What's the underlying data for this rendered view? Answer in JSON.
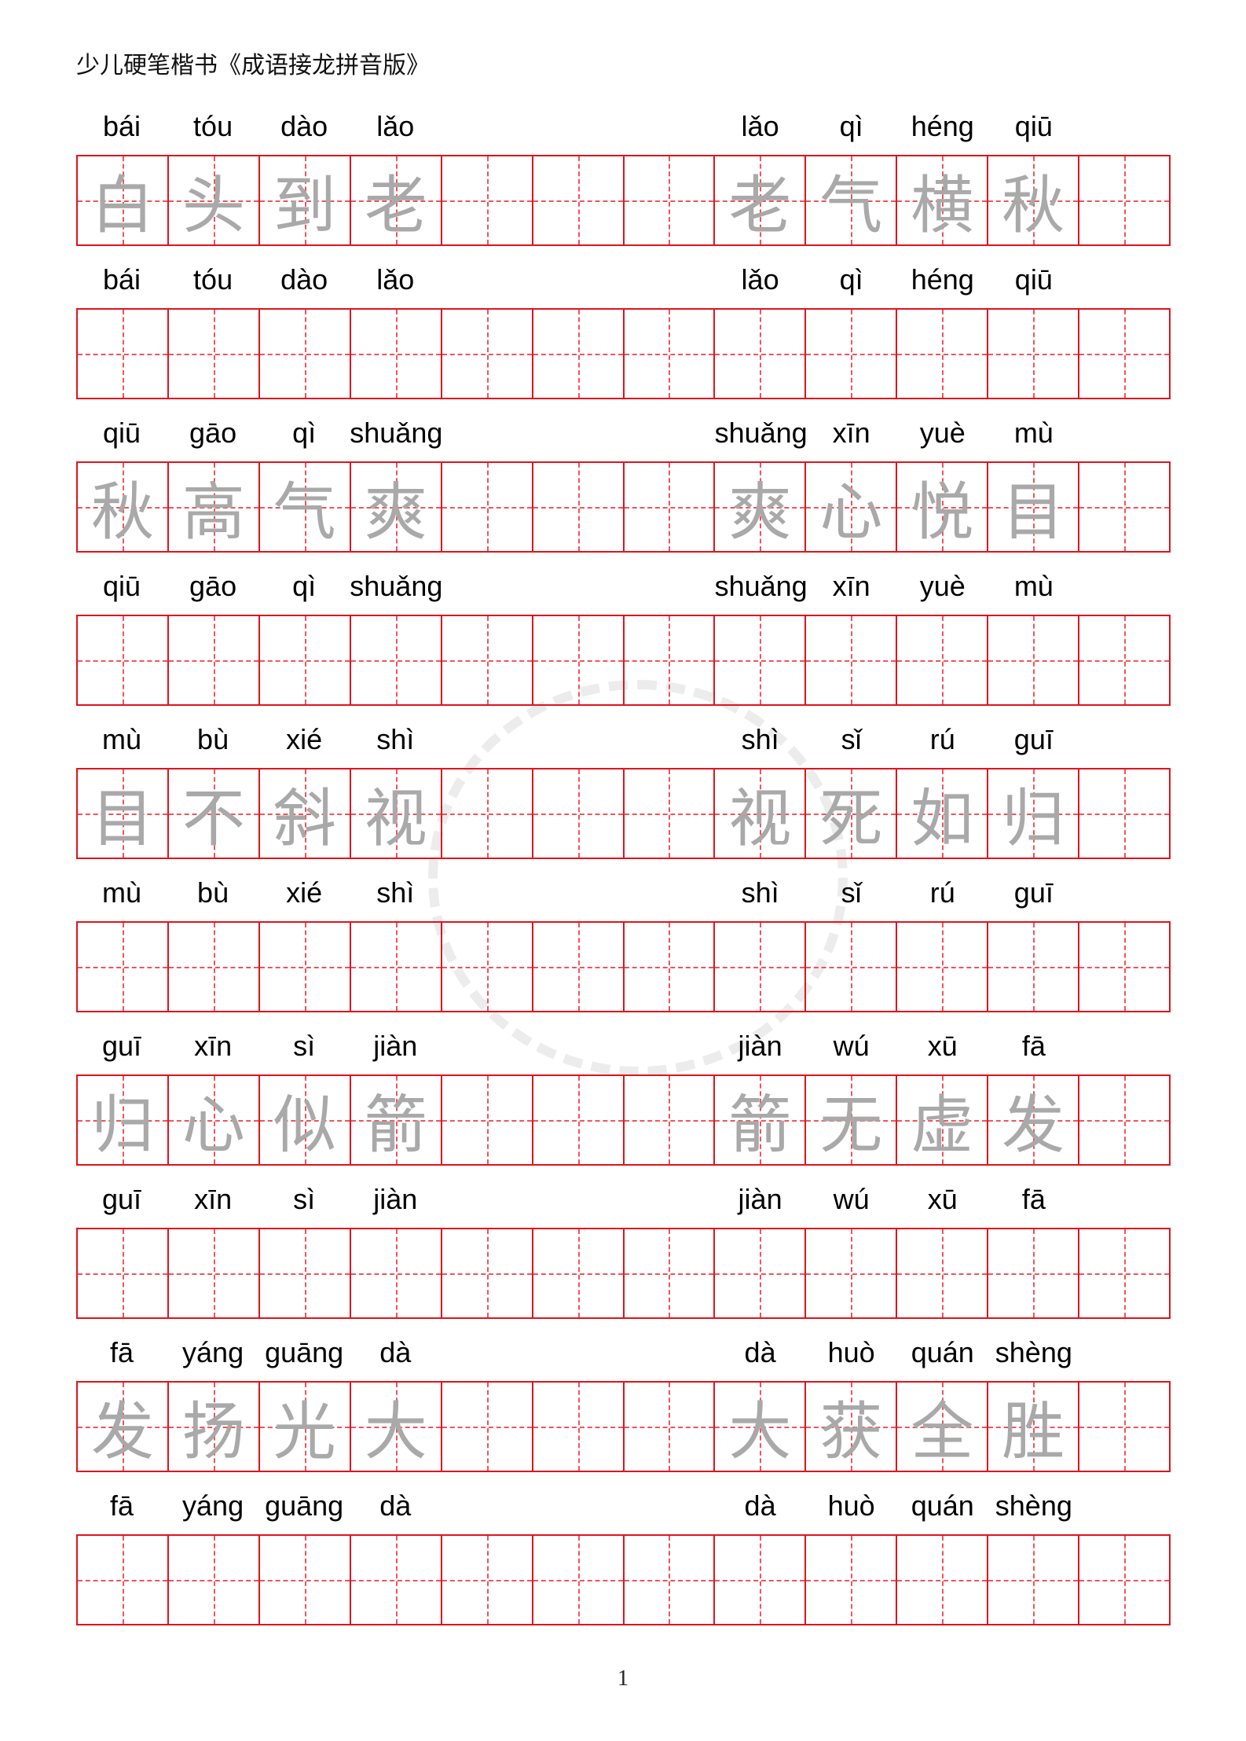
{
  "header": {
    "title": "少儿硬笔楷书《成语接龙拼音版》"
  },
  "footer": {
    "page_number": "1"
  },
  "colors": {
    "grid_line": "#e0141e",
    "guide_line": "#f0545c",
    "trace_char": "#a9a9a9"
  },
  "cells_per_row": 12,
  "pairs": [
    {
      "left": {
        "chars": [
          "白",
          "头",
          "到",
          "老"
        ],
        "pinyin": [
          "bái",
          "tóu",
          "dào",
          "lǎo"
        ]
      },
      "right": {
        "chars": [
          "老",
          "气",
          "横",
          "秋"
        ],
        "pinyin": [
          "lǎo",
          "qì",
          "héng",
          "qiū"
        ]
      }
    },
    {
      "left": {
        "chars": [
          "秋",
          "高",
          "气",
          "爽"
        ],
        "pinyin": [
          "qiū",
          "gāo",
          "qì",
          "shuǎng"
        ]
      },
      "right": {
        "chars": [
          "爽",
          "心",
          "悦",
          "目"
        ],
        "pinyin": [
          "shuǎng",
          "xīn",
          "yuè",
          "mù"
        ]
      }
    },
    {
      "left": {
        "chars": [
          "目",
          "不",
          "斜",
          "视"
        ],
        "pinyin": [
          "mù",
          "bù",
          "xié",
          "shì"
        ]
      },
      "right": {
        "chars": [
          "视",
          "死",
          "如",
          "归"
        ],
        "pinyin": [
          "shì",
          "sǐ",
          "rú",
          "guī"
        ]
      }
    },
    {
      "left": {
        "chars": [
          "归",
          "心",
          "似",
          "箭"
        ],
        "pinyin": [
          "guī",
          "xīn",
          "sì",
          "jiàn"
        ]
      },
      "right": {
        "chars": [
          "箭",
          "无",
          "虚",
          "发"
        ],
        "pinyin": [
          "jiàn",
          "wú",
          "xū",
          "fā"
        ]
      }
    },
    {
      "left": {
        "chars": [
          "发",
          "扬",
          "光",
          "大"
        ],
        "pinyin": [
          "fā",
          "yáng",
          "guāng",
          "dà"
        ]
      },
      "right": {
        "chars": [
          "大",
          "获",
          "全",
          "胜"
        ],
        "pinyin": [
          "dà",
          "huò",
          "quán",
          "shèng"
        ]
      }
    }
  ]
}
